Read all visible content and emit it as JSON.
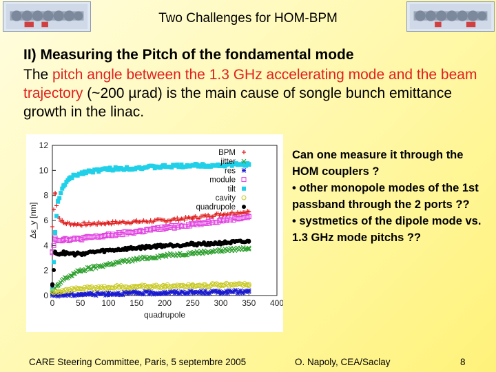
{
  "title": "Two Challenges for HOM-BPM",
  "heading": "II) Measuring the Pitch of the fondamental mode",
  "body": {
    "prefix": "The ",
    "highlight1": "pitch angle between the 1.3 GHz accelerating mode",
    "mid": " ",
    "highlight2": "and the beam trajectory",
    "suffix": " (~200 µrad) is the main cause of songle bunch emittance growth in the linac."
  },
  "side_points": [
    "Can one measure it through the HOM couplers ?",
    "• other monopole modes of the 1st passband through the 2 ports ??",
    "• systmetics of the dipole mode vs. 1.3 GHz mode pitchs ??"
  ],
  "footer": {
    "left": "CARE Steering Committee, Paris, 5 septembre 2005",
    "middle": "O. Napoly, CEA/Saclay",
    "page": "8"
  },
  "chart_data": {
    "type": "scatter",
    "xlabel": "quadrupole",
    "ylabel": "Δε_y [nm]",
    "xlim": [
      0,
      400
    ],
    "ylim": [
      0,
      12
    ],
    "x_ticks": [
      "0",
      "50",
      "100",
      "150",
      "200",
      "250",
      "300",
      "350",
      "400"
    ],
    "y_ticks": [
      "0",
      "2",
      "4",
      "6",
      "8",
      "10",
      "12"
    ],
    "legend_position": "top-right",
    "grid": false,
    "series": [
      {
        "name": "BPM",
        "color": "#e02020",
        "marker": "plus",
        "x": [
          0,
          5,
          10,
          20,
          40,
          60,
          100,
          150,
          200,
          250,
          300,
          350
        ],
        "y": [
          5.5,
          8.2,
          6.3,
          5.8,
          5.7,
          5.7,
          5.8,
          5.9,
          6.0,
          6.2,
          6.5,
          6.7
        ]
      },
      {
        "name": "jitter",
        "color": "#2fa02f",
        "marker": "cross",
        "x": [
          0,
          10,
          20,
          50,
          100,
          150,
          200,
          250,
          300,
          350
        ],
        "y": [
          0.2,
          0.8,
          1.3,
          2.0,
          2.5,
          2.9,
          3.2,
          3.4,
          3.6,
          3.8
        ]
      },
      {
        "name": "res",
        "color": "#1a1ad0",
        "marker": "star",
        "x": [
          0,
          50,
          100,
          150,
          200,
          250,
          300,
          350
        ],
        "y": [
          0.02,
          0.1,
          0.15,
          0.2,
          0.22,
          0.25,
          0.28,
          0.3
        ]
      },
      {
        "name": "module",
        "color": "#e040e0",
        "marker": "square",
        "x": [
          0,
          5,
          10,
          20,
          40,
          60,
          100,
          150,
          200,
          250,
          300,
          350
        ],
        "y": [
          3.5,
          4.6,
          4.4,
          4.5,
          4.5,
          4.6,
          4.8,
          5.1,
          5.4,
          5.7,
          6.0,
          6.3
        ]
      },
      {
        "name": "tilt",
        "color": "#20d0e8",
        "marker": "filled-square",
        "x": [
          0,
          5,
          10,
          20,
          30,
          40,
          60,
          100,
          150,
          200,
          250,
          300,
          350
        ],
        "y": [
          0.5,
          5.0,
          7.5,
          8.8,
          9.3,
          9.6,
          9.9,
          10.1,
          10.2,
          10.3,
          10.4,
          10.4,
          10.5
        ]
      },
      {
        "name": "cavity",
        "color": "#c8c820",
        "marker": "circle",
        "x": [
          0,
          50,
          100,
          150,
          200,
          250,
          300,
          350
        ],
        "y": [
          0.3,
          0.55,
          0.65,
          0.7,
          0.75,
          0.8,
          0.85,
          0.9
        ]
      },
      {
        "name": "quadrupole",
        "color": "#000000",
        "marker": "filled-circle",
        "x": [
          0,
          5,
          10,
          20,
          40,
          60,
          100,
          150,
          200,
          250,
          300,
          350
        ],
        "y": [
          0.8,
          3.5,
          3.3,
          3.4,
          3.3,
          3.4,
          3.6,
          3.8,
          4.0,
          4.1,
          4.2,
          4.3
        ]
      }
    ]
  }
}
